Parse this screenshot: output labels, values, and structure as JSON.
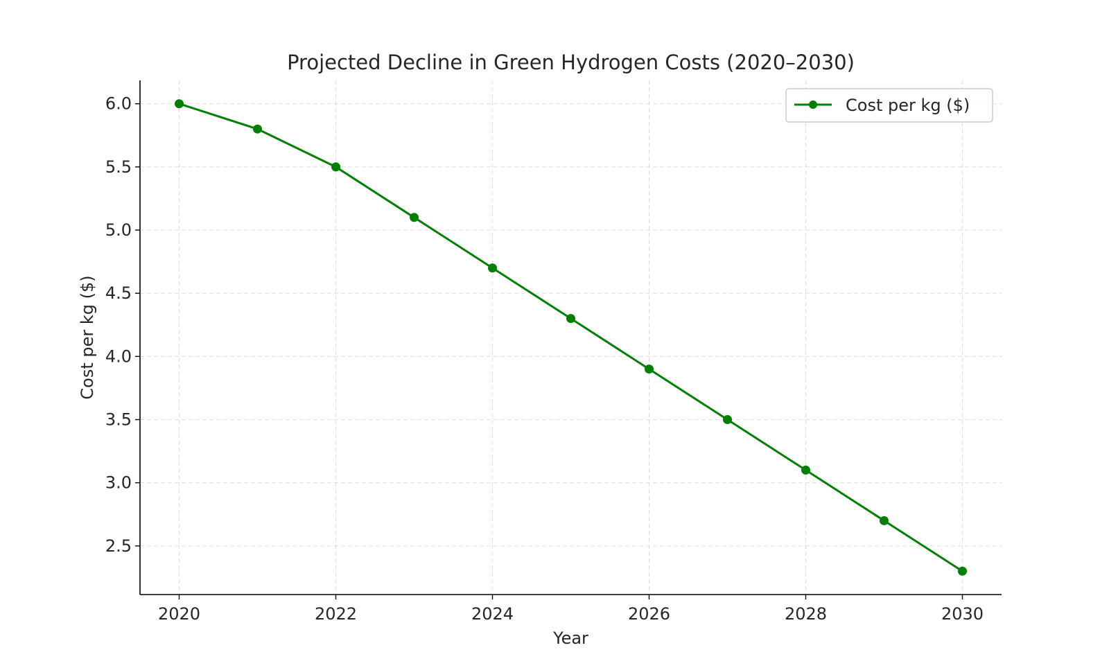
{
  "chart_data": {
    "type": "line",
    "title": "Projected Decline in Green Hydrogen Costs (2020–2030)",
    "xlabel": "Year",
    "ylabel": "Cost per kg ($)",
    "x": [
      2020,
      2021,
      2022,
      2023,
      2024,
      2025,
      2026,
      2027,
      2028,
      2029,
      2030
    ],
    "series": [
      {
        "name": "Cost per kg ($)",
        "color": "#008000",
        "marker": "circle",
        "values": [
          6.0,
          5.8,
          5.5,
          5.1,
          4.7,
          4.3,
          3.9,
          3.5,
          3.1,
          2.7,
          2.3
        ]
      }
    ],
    "xlim": [
      2019.5,
      2030.5
    ],
    "ylim": [
      2.115,
      6.185
    ],
    "xticks": [
      2020,
      2022,
      2024,
      2026,
      2028,
      2030
    ],
    "xtick_labels": [
      "2020",
      "2022",
      "2024",
      "2026",
      "2028",
      "2030"
    ],
    "yticks": [
      2.5,
      3.0,
      3.5,
      4.0,
      4.5,
      5.0,
      5.5,
      6.0
    ],
    "ytick_labels": [
      "2.5",
      "3.0",
      "3.5",
      "4.0",
      "4.5",
      "5.0",
      "5.5",
      "6.0"
    ],
    "grid": true,
    "grid_style": "dashed",
    "legend_position": "top-right"
  }
}
